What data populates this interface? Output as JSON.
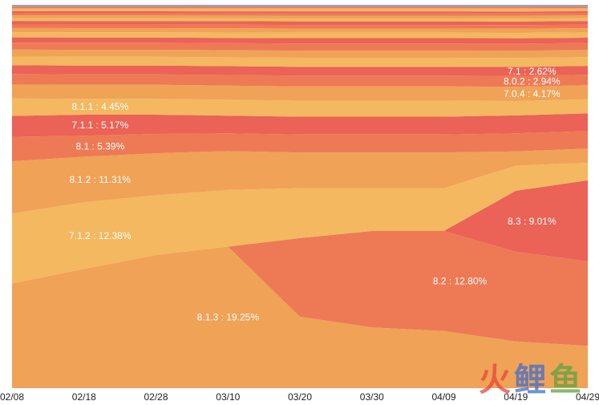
{
  "chart_data": {
    "type": "area",
    "stacked": true,
    "normalized": true,
    "x": [
      "02/08",
      "02/18",
      "02/28",
      "03/10",
      "03/20",
      "03/30",
      "04/09",
      "04/19",
      "04/29"
    ],
    "ylim": [
      0,
      100
    ],
    "grid": false,
    "legend": "none",
    "series": [
      {
        "name": "8.1.3",
        "label": "8.1.3 : 19.25%",
        "values": [
          30.0,
          34.0,
          38.0,
          40.0,
          20.0,
          17.0,
          16.0,
          13.0,
          12.0
        ]
      },
      {
        "name": "8.2",
        "label": "8.2 : 12.80%",
        "values": [
          0.0,
          0.0,
          0.0,
          0.0,
          22.0,
          27.0,
          28.0,
          25.0,
          24.0
        ]
      },
      {
        "name": "8.3",
        "label": "8.3 : 9.01%",
        "values": [
          0.0,
          0.0,
          0.0,
          0.0,
          0.0,
          0.0,
          0.0,
          17.0,
          23.0
        ]
      },
      {
        "name": "7.1.2",
        "label": "7.1.2 : 12.38%",
        "values": [
          20.0,
          19.0,
          17.0,
          16.0,
          14.0,
          12.0,
          12.0,
          7.0,
          5.0
        ]
      },
      {
        "name": "8.1.2",
        "label": "8.1.2 : 11.31%",
        "values": [
          15.0,
          13.0,
          12.0,
          11.0,
          10.0,
          10.0,
          10.0,
          4.0,
          4.0
        ]
      },
      {
        "name": "8.1",
        "label": "8.1 : 5.39%",
        "values": [
          7.0,
          6.0,
          5.5,
          5.0,
          5.0,
          5.0,
          5.0,
          5.0,
          5.0
        ]
      },
      {
        "name": "7.1.1",
        "label": "7.1.1 : 5.17%",
        "values": [
          6.0,
          6.0,
          5.5,
          5.0,
          5.0,
          5.0,
          5.0,
          5.0,
          5.0
        ]
      },
      {
        "name": "8.1.1",
        "label": "8.1.1 : 4.45%",
        "values": [
          5.0,
          4.5,
          4.5,
          4.5,
          4.5,
          4.5,
          4.5,
          4.0,
          4.0
        ]
      },
      {
        "name": "7.0.4",
        "label": "7.0.4 : 4.17%",
        "values": [
          4.0,
          4.0,
          4.0,
          4.0,
          4.0,
          4.0,
          4.0,
          4.0,
          4.0
        ]
      },
      {
        "name": "8.0.2",
        "label": "8.0.2 : 2.94%",
        "values": [
          3.0,
          3.0,
          3.0,
          3.0,
          3.0,
          3.0,
          3.0,
          3.0,
          3.0
        ]
      },
      {
        "name": "7.1",
        "label": "7.1 : 2.62%",
        "values": [
          2.5,
          2.5,
          2.5,
          2.5,
          2.5,
          2.5,
          2.5,
          2.5,
          2.5
        ]
      },
      {
        "name": "",
        "label": "",
        "values": [
          2.5,
          2.5,
          2.5,
          2.5,
          2.5,
          2.5,
          2.5,
          2.5,
          2.5
        ]
      },
      {
        "name": "",
        "label": "",
        "values": [
          2.0,
          2.0,
          2.0,
          2.0,
          2.0,
          2.0,
          2.0,
          2.0,
          2.0
        ]
      },
      {
        "name": "",
        "label": "",
        "values": [
          2.0,
          2.0,
          2.0,
          2.0,
          2.0,
          2.0,
          2.0,
          2.0,
          2.0
        ]
      },
      {
        "name": "",
        "label": "",
        "values": [
          1.5,
          1.5,
          1.5,
          1.5,
          1.5,
          1.5,
          1.5,
          1.5,
          1.5
        ]
      },
      {
        "name": "",
        "label": "",
        "values": [
          1.5,
          1.5,
          1.5,
          1.5,
          1.5,
          1.5,
          1.5,
          1.5,
          1.5
        ]
      },
      {
        "name": "",
        "label": "",
        "values": [
          1.2,
          1.2,
          1.2,
          1.2,
          1.2,
          1.2,
          1.2,
          1.2,
          1.2
        ]
      },
      {
        "name": "",
        "label": "",
        "values": [
          1.0,
          1.0,
          1.0,
          1.0,
          1.0,
          1.0,
          1.0,
          1.0,
          1.0
        ]
      },
      {
        "name": "",
        "label": "",
        "values": [
          1.0,
          1.0,
          1.0,
          1.0,
          1.0,
          1.0,
          1.0,
          1.0,
          1.0
        ]
      },
      {
        "name": "",
        "label": "",
        "values": [
          0.8,
          0.8,
          0.8,
          0.8,
          0.8,
          0.8,
          0.8,
          0.8,
          0.8
        ]
      },
      {
        "name": "",
        "label": "",
        "values": [
          0.8,
          0.8,
          0.8,
          0.8,
          0.8,
          0.8,
          0.8,
          0.8,
          0.8
        ]
      },
      {
        "name": "",
        "label": "",
        "values": [
          0.6,
          0.6,
          0.6,
          0.6,
          0.6,
          0.6,
          0.6,
          0.6,
          0.6
        ]
      },
      {
        "name": "",
        "label": "",
        "values": [
          0.6,
          0.6,
          0.6,
          0.6,
          0.6,
          0.6,
          0.6,
          0.6,
          0.6
        ]
      },
      {
        "name": "",
        "label": "",
        "values": [
          0.5,
          0.5,
          0.5,
          0.5,
          0.5,
          0.5,
          0.5,
          0.5,
          0.5
        ]
      },
      {
        "name": "",
        "label": "",
        "values": [
          0.4,
          0.4,
          0.4,
          0.4,
          0.4,
          0.4,
          0.4,
          0.4,
          0.4
        ]
      },
      {
        "name": "",
        "label": "",
        "values": [
          0.4,
          0.4,
          0.4,
          0.4,
          0.4,
          0.4,
          0.4,
          0.4,
          0.4
        ]
      },
      {
        "name": "",
        "label": "",
        "values": [
          0.3,
          0.3,
          0.3,
          0.3,
          0.3,
          0.3,
          0.3,
          0.3,
          0.3
        ]
      }
    ],
    "colors": [
      "#f0a257",
      "#ed7a55",
      "#eb6256",
      "#f4b860"
    ],
    "top_edge_color": "#8aa7c9"
  },
  "watermark": [
    "火",
    "鲤",
    "鱼"
  ]
}
